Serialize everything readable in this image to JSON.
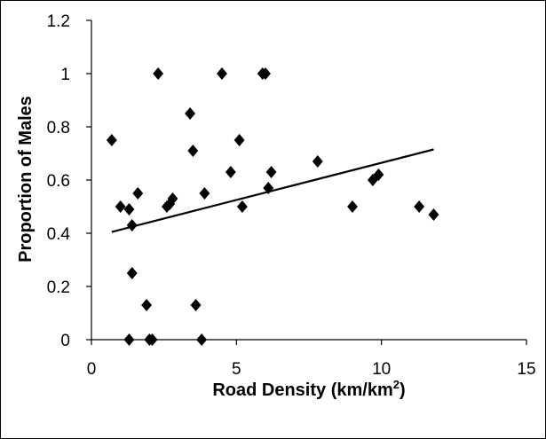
{
  "chart_data": {
    "type": "scatter",
    "title": "",
    "xlabel": "Road Density (km/km",
    "xlabel_sup": "2",
    "xlabel_end": ")",
    "ylabel": "Proportion of Males",
    "xlim": [
      0,
      15
    ],
    "ylim": [
      0,
      1.2
    ],
    "x_ticks": [
      0,
      5,
      10,
      15
    ],
    "x_tick_labels": [
      "0",
      "5",
      "10",
      "15"
    ],
    "y_ticks": [
      0,
      0.2,
      0.4,
      0.6,
      0.8,
      1.0,
      1.2
    ],
    "y_tick_labels": [
      "0",
      "0.2",
      "0.4",
      "0.6",
      "0.8",
      "1",
      "1.2"
    ],
    "grid": false,
    "marker": "diamond",
    "marker_color": "#000000",
    "points": [
      {
        "x": 0.7,
        "y": 0.75
      },
      {
        "x": 1.0,
        "y": 0.5
      },
      {
        "x": 1.3,
        "y": 0.49
      },
      {
        "x": 1.3,
        "y": 0.0
      },
      {
        "x": 1.4,
        "y": 0.43
      },
      {
        "x": 1.4,
        "y": 0.25
      },
      {
        "x": 1.6,
        "y": 0.55
      },
      {
        "x": 1.9,
        "y": 0.13
      },
      {
        "x": 2.0,
        "y": 0.0
      },
      {
        "x": 2.1,
        "y": 0.0
      },
      {
        "x": 2.3,
        "y": 1.0
      },
      {
        "x": 2.6,
        "y": 0.5
      },
      {
        "x": 2.7,
        "y": 0.51
      },
      {
        "x": 2.8,
        "y": 0.53
      },
      {
        "x": 3.4,
        "y": 0.85
      },
      {
        "x": 3.5,
        "y": 0.71
      },
      {
        "x": 3.6,
        "y": 0.13
      },
      {
        "x": 3.8,
        "y": 0.0
      },
      {
        "x": 3.9,
        "y": 0.55
      },
      {
        "x": 4.5,
        "y": 1.0
      },
      {
        "x": 4.8,
        "y": 0.63
      },
      {
        "x": 5.1,
        "y": 0.75
      },
      {
        "x": 5.2,
        "y": 0.5
      },
      {
        "x": 5.9,
        "y": 1.0
      },
      {
        "x": 6.0,
        "y": 1.0
      },
      {
        "x": 6.1,
        "y": 0.57
      },
      {
        "x": 6.2,
        "y": 0.63
      },
      {
        "x": 7.8,
        "y": 0.67
      },
      {
        "x": 9.0,
        "y": 0.5
      },
      {
        "x": 9.7,
        "y": 0.6
      },
      {
        "x": 9.9,
        "y": 0.62
      },
      {
        "x": 11.3,
        "y": 0.5
      },
      {
        "x": 11.8,
        "y": 0.47
      }
    ],
    "trendline": {
      "type": "linear",
      "x": [
        0.7,
        11.8
      ],
      "y": [
        0.405,
        0.715
      ]
    }
  }
}
